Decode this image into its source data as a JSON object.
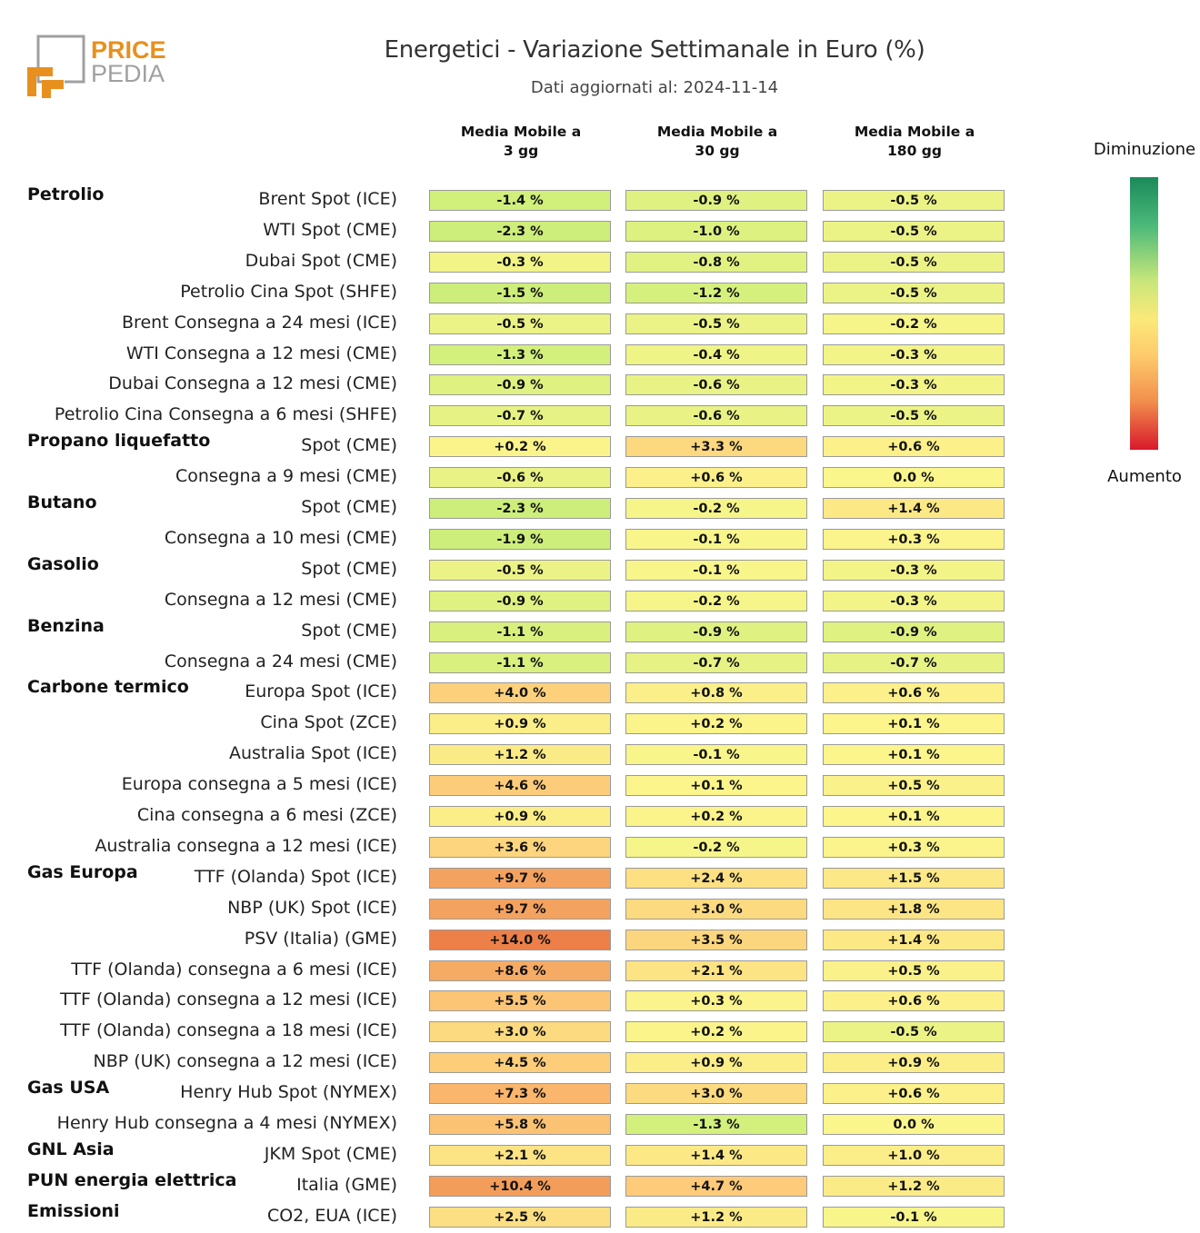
{
  "header": {
    "title": "Energetici - Variazione Settimanale in Euro (%)",
    "subtitle": "Dati aggiornati al: 2024-11-14"
  },
  "logo": {
    "line1": "PRICE",
    "line2": "PEDIA",
    "accent": "#e8901e",
    "gray": "#a0a0a0"
  },
  "legend": {
    "top_label": "Diminuzione",
    "bottom_label": "Aumento",
    "colors": [
      "#1a8a5a",
      "#4cba7a",
      "#c8e67a",
      "#fbe97a",
      "#fdc96a",
      "#f2904e",
      "#d8192c"
    ]
  },
  "chart_data": {
    "type": "heatmap",
    "title": "Energetici - Variazione Settimanale in Euro (%)",
    "unit": "%",
    "columns": [
      "Media Mobile a\n3 gg",
      "Media Mobile a\n30 gg",
      "Media Mobile a\n180 gg"
    ],
    "groups": [
      {
        "category": "Petrolio",
        "rows": [
          {
            "label": "Brent Spot (ICE)",
            "values": [
              -1.4,
              -0.9,
              -0.5
            ],
            "text": [
              "-1.4 %",
              "-0.9 %",
              "-0.5 %"
            ]
          },
          {
            "label": "WTI Spot (CME)",
            "values": [
              -2.3,
              -1.0,
              -0.5
            ],
            "text": [
              "-2.3 %",
              "-1.0 %",
              "-0.5 %"
            ]
          },
          {
            "label": "Dubai Spot (CME)",
            "values": [
              -0.3,
              -0.8,
              -0.5
            ],
            "text": [
              "-0.3 %",
              "-0.8 %",
              "-0.5 %"
            ]
          },
          {
            "label": "Petrolio Cina Spot (SHFE)",
            "values": [
              -1.5,
              -1.2,
              -0.5
            ],
            "text": [
              "-1.5 %",
              "-1.2 %",
              "-0.5 %"
            ]
          },
          {
            "label": "Brent Consegna a 24 mesi (ICE)",
            "values": [
              -0.5,
              -0.5,
              -0.2
            ],
            "text": [
              "-0.5 %",
              "-0.5 %",
              "-0.2 %"
            ]
          },
          {
            "label": "WTI Consegna a 12 mesi (CME)",
            "values": [
              -1.3,
              -0.4,
              -0.3
            ],
            "text": [
              "-1.3 %",
              "-0.4 %",
              "-0.3 %"
            ]
          },
          {
            "label": "Dubai Consegna a 12 mesi (CME)",
            "values": [
              -0.9,
              -0.6,
              -0.3
            ],
            "text": [
              "-0.9 %",
              "-0.6 %",
              "-0.3 %"
            ]
          },
          {
            "label": "Petrolio Cina Consegna a 6 mesi (SHFE)",
            "values": [
              -0.7,
              -0.6,
              -0.5
            ],
            "text": [
              "-0.7 %",
              "-0.6 %",
              "-0.5 %"
            ]
          }
        ]
      },
      {
        "category": "Propano liquefatto",
        "rows": [
          {
            "label": "Spot (CME)",
            "values": [
              0.2,
              3.3,
              0.6
            ],
            "text": [
              "+0.2 %",
              "+3.3 %",
              "+0.6 %"
            ]
          },
          {
            "label": "Consegna a 9 mesi (CME)",
            "values": [
              -0.6,
              0.6,
              0.0
            ],
            "text": [
              "-0.6 %",
              "+0.6 %",
              "0.0 %"
            ]
          }
        ]
      },
      {
        "category": "Butano",
        "rows": [
          {
            "label": "Spot (CME)",
            "values": [
              -2.3,
              -0.2,
              1.4
            ],
            "text": [
              "-2.3 %",
              "-0.2 %",
              "+1.4 %"
            ]
          },
          {
            "label": "Consegna a 10 mesi (CME)",
            "values": [
              -1.9,
              -0.1,
              0.3
            ],
            "text": [
              "-1.9 %",
              "-0.1 %",
              "+0.3 %"
            ]
          }
        ]
      },
      {
        "category": "Gasolio",
        "rows": [
          {
            "label": "Spot (CME)",
            "values": [
              -0.5,
              -0.1,
              -0.3
            ],
            "text": [
              "-0.5 %",
              "-0.1 %",
              "-0.3 %"
            ]
          },
          {
            "label": "Consegna a 12 mesi (CME)",
            "values": [
              -0.9,
              -0.2,
              -0.3
            ],
            "text": [
              "-0.9 %",
              "-0.2 %",
              "-0.3 %"
            ]
          }
        ]
      },
      {
        "category": "Benzina",
        "rows": [
          {
            "label": "Spot (CME)",
            "values": [
              -1.1,
              -0.9,
              -0.9
            ],
            "text": [
              "-1.1 %",
              "-0.9 %",
              "-0.9 %"
            ]
          },
          {
            "label": "Consegna a 24 mesi (CME)",
            "values": [
              -1.1,
              -0.7,
              -0.7
            ],
            "text": [
              "-1.1 %",
              "-0.7 %",
              "-0.7 %"
            ]
          }
        ]
      },
      {
        "category": "Carbone termico",
        "rows": [
          {
            "label": "Europa Spot (ICE)",
            "values": [
              4.0,
              0.8,
              0.6
            ],
            "text": [
              "+4.0 %",
              "+0.8 %",
              "+0.6 %"
            ]
          },
          {
            "label": "Cina Spot (ZCE)",
            "values": [
              0.9,
              0.2,
              0.1
            ],
            "text": [
              "+0.9 %",
              "+0.2 %",
              "+0.1 %"
            ]
          },
          {
            "label": "Australia Spot (ICE)",
            "values": [
              1.2,
              -0.1,
              0.1
            ],
            "text": [
              "+1.2 %",
              "-0.1 %",
              "+0.1 %"
            ]
          },
          {
            "label": "Europa consegna a 5 mesi (ICE)",
            "values": [
              4.6,
              0.1,
              0.5
            ],
            "text": [
              "+4.6 %",
              "+0.1 %",
              "+0.5 %"
            ]
          },
          {
            "label": "Cina consegna a 6 mesi (ZCE)",
            "values": [
              0.9,
              0.2,
              0.1
            ],
            "text": [
              "+0.9 %",
              "+0.2 %",
              "+0.1 %"
            ]
          },
          {
            "label": "Australia consegna a 12 mesi (ICE)",
            "values": [
              3.6,
              -0.2,
              0.3
            ],
            "text": [
              "+3.6 %",
              "-0.2 %",
              "+0.3 %"
            ]
          }
        ]
      },
      {
        "category": "Gas Europa",
        "rows": [
          {
            "label": "TTF (Olanda) Spot (ICE)",
            "values": [
              9.7,
              2.4,
              1.5
            ],
            "text": [
              "+9.7 %",
              "+2.4 %",
              "+1.5 %"
            ]
          },
          {
            "label": "NBP (UK) Spot (ICE)",
            "values": [
              9.7,
              3.0,
              1.8
            ],
            "text": [
              "+9.7 %",
              "+3.0 %",
              "+1.8 %"
            ]
          },
          {
            "label": "PSV (Italia) (GME)",
            "values": [
              14.0,
              3.5,
              1.4
            ],
            "text": [
              "+14.0 %",
              "+3.5 %",
              "+1.4 %"
            ]
          },
          {
            "label": "TTF (Olanda) consegna a 6 mesi (ICE)",
            "values": [
              8.6,
              2.1,
              0.5
            ],
            "text": [
              "+8.6 %",
              "+2.1 %",
              "+0.5 %"
            ]
          },
          {
            "label": "TTF (Olanda) consegna a 12 mesi (ICE)",
            "values": [
              5.5,
              0.3,
              0.6
            ],
            "text": [
              "+5.5 %",
              "+0.3 %",
              "+0.6 %"
            ]
          },
          {
            "label": "TTF (Olanda) consegna a 18 mesi (ICE)",
            "values": [
              3.0,
              0.2,
              -0.5
            ],
            "text": [
              "+3.0 %",
              "+0.2 %",
              "-0.5 %"
            ]
          },
          {
            "label": "NBP (UK) consegna a 12 mesi (ICE)",
            "values": [
              4.5,
              0.9,
              0.9
            ],
            "text": [
              "+4.5 %",
              "+0.9 %",
              "+0.9 %"
            ]
          }
        ]
      },
      {
        "category": "Gas USA",
        "rows": [
          {
            "label": "Henry Hub Spot (NYMEX)",
            "values": [
              7.3,
              3.0,
              0.6
            ],
            "text": [
              "+7.3 %",
              "+3.0 %",
              "+0.6 %"
            ]
          },
          {
            "label": "Henry Hub consegna a 4 mesi (NYMEX)",
            "values": [
              5.8,
              -1.3,
              0.0
            ],
            "text": [
              "+5.8 %",
              "-1.3 %",
              "0.0 %"
            ]
          }
        ]
      },
      {
        "category": "GNL Asia",
        "rows": [
          {
            "label": "JKM Spot (CME)",
            "values": [
              2.1,
              1.4,
              1.0
            ],
            "text": [
              "+2.1 %",
              "+1.4 %",
              "+1.0 %"
            ]
          }
        ]
      },
      {
        "category": "PUN energia elettrica",
        "rows": [
          {
            "label": "Italia (GME)",
            "values": [
              10.4,
              4.7,
              1.2
            ],
            "text": [
              "+10.4 %",
              "+4.7 %",
              "+1.2 %"
            ]
          }
        ]
      },
      {
        "category": "Emissioni",
        "rows": [
          {
            "label": "CO2, EUA (ICE)",
            "values": [
              2.5,
              1.2,
              -0.1
            ],
            "text": [
              "+2.5 %",
              "+1.2 %",
              "-0.1 %"
            ]
          }
        ]
      }
    ]
  }
}
